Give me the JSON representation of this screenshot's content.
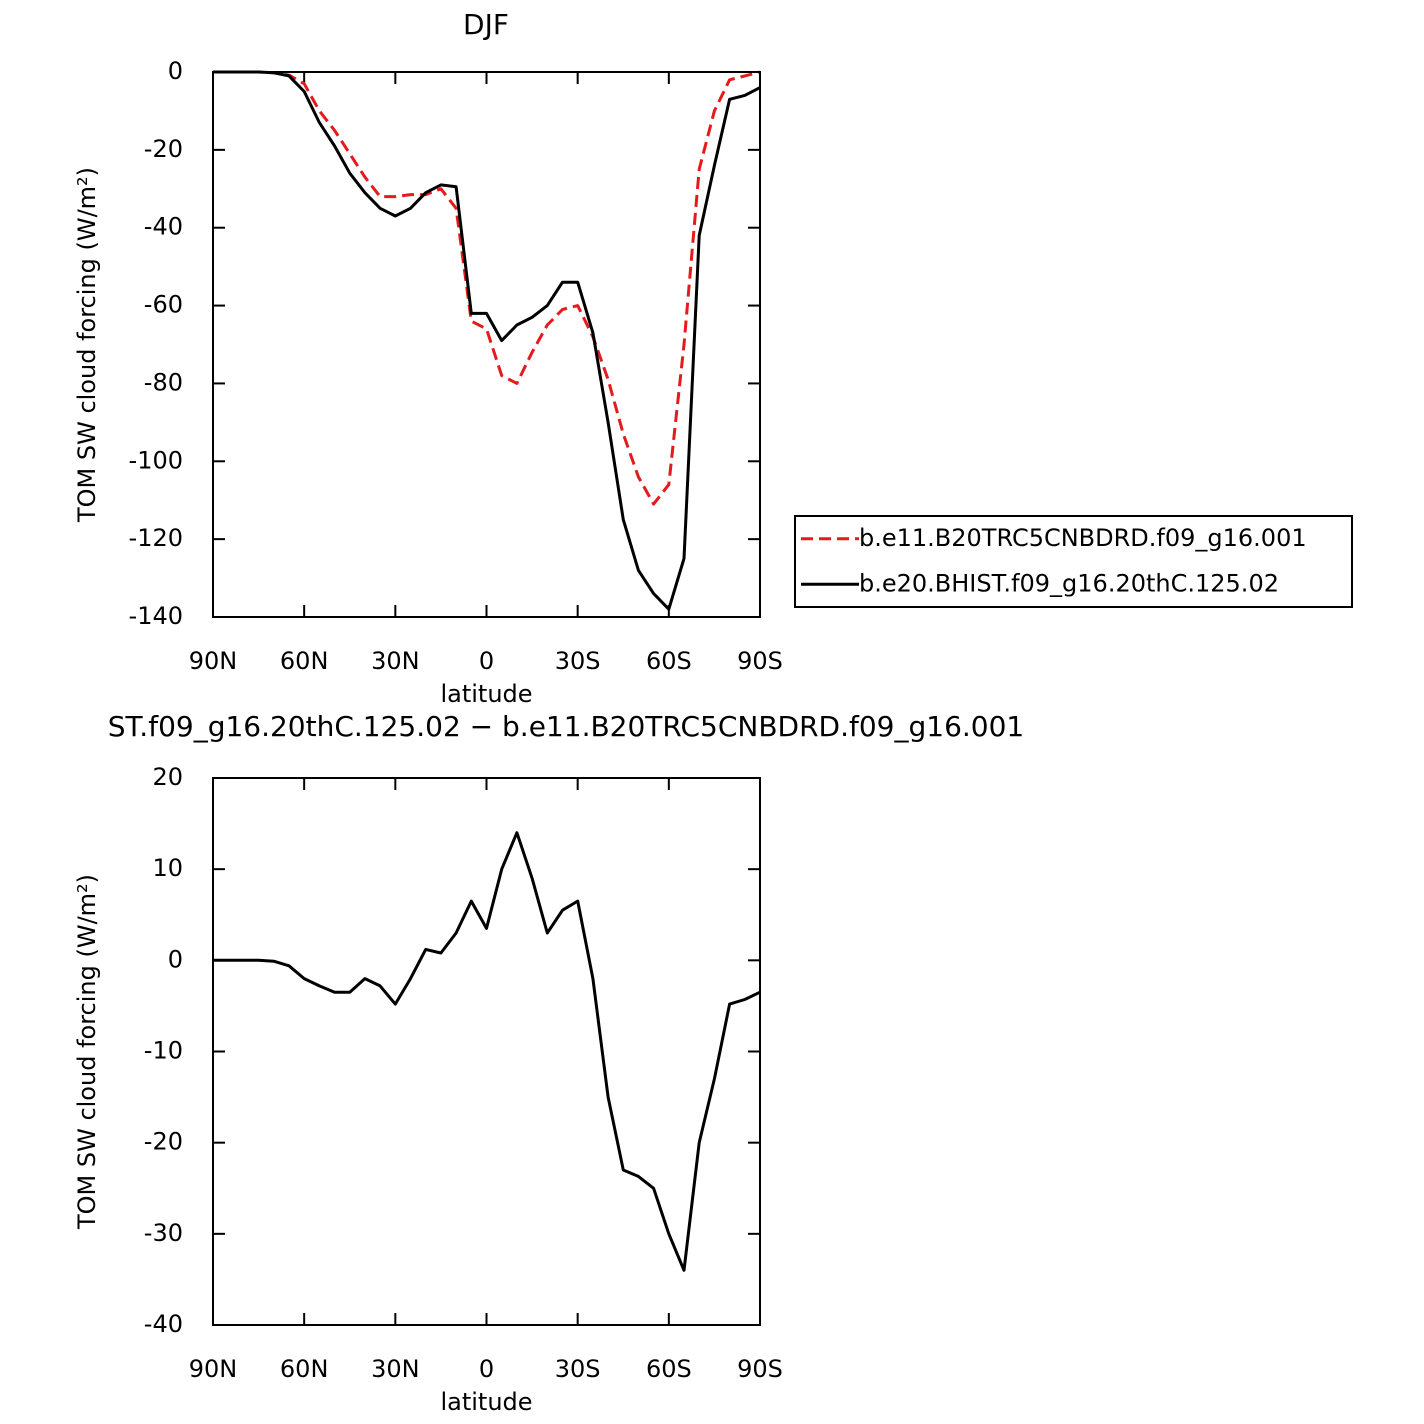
{
  "chart_data": [
    {
      "type": "line",
      "title": "DJF",
      "xlabel": "latitude",
      "ylabel": "TOM SW cloud forcing (W/m²)",
      "x": [
        90,
        85,
        80,
        75,
        70,
        65,
        60,
        55,
        50,
        45,
        40,
        35,
        30,
        25,
        20,
        15,
        10,
        5,
        0,
        -5,
        -10,
        -15,
        -20,
        -25,
        -30,
        -35,
        -40,
        -45,
        -50,
        -55,
        -60,
        -65,
        -70,
        -75,
        -80,
        -85,
        -90
      ],
      "xlim": [
        90,
        -90
      ],
      "xticks": [
        {
          "value": 90,
          "label": "90N"
        },
        {
          "value": 60,
          "label": "60N"
        },
        {
          "value": 30,
          "label": "30N"
        },
        0,
        {
          "value": -30,
          "label": "30S"
        },
        {
          "value": -60,
          "label": "60S"
        },
        {
          "value": -90,
          "label": "90S"
        }
      ],
      "ylim": [
        -140,
        0
      ],
      "yticks": [
        0,
        -20,
        -40,
        -60,
        -80,
        -100,
        -120,
        -140
      ],
      "legend": "right",
      "series": [
        {
          "name": "b.e11.B20TRC5CNBDRD.f09_g16.001",
          "color": "#e41a1c",
          "dash": true,
          "values": [
            0,
            0,
            0,
            0,
            -0.2,
            -0.8,
            -3,
            -10,
            -15,
            -21,
            -27,
            -32,
            -32,
            -31.5,
            -31.5,
            -30,
            -35,
            -64,
            -66,
            -78,
            -80,
            -72,
            -65,
            -61,
            -60,
            -68,
            -79,
            -93,
            -104,
            -111,
            -106,
            -70,
            -25,
            -10,
            -2,
            -1,
            0
          ]
        },
        {
          "name": "b.e20.BHIST.f09_g16.20thC.125.02",
          "color": "#000000",
          "dash": false,
          "values": [
            0,
            0,
            0,
            0,
            -0.2,
            -1,
            -5,
            -13,
            -19,
            -26,
            -31,
            -35,
            -37,
            -35,
            -31,
            -29,
            -29.5,
            -62,
            -62,
            -69,
            -65,
            -63,
            -60,
            -54,
            -54,
            -67,
            -90,
            -115,
            -128,
            -134,
            -138,
            -125,
            -42,
            -24,
            -7,
            -6,
            -4
          ]
        }
      ]
    },
    {
      "type": "line",
      "title": "ST.f09_g16.20thC.125.02 − b.e11.B20TRC5CNBDRD.f09_g16.001",
      "xlabel": "latitude",
      "ylabel": "TOM SW cloud forcing (W/m²)",
      "x": [
        90,
        85,
        80,
        75,
        70,
        65,
        60,
        55,
        50,
        45,
        40,
        35,
        30,
        25,
        20,
        15,
        10,
        5,
        0,
        -5,
        -10,
        -15,
        -20,
        -25,
        -30,
        -35,
        -40,
        -45,
        -50,
        -55,
        -60,
        -65,
        -70,
        -75,
        -80,
        -85,
        -90
      ],
      "xlim": [
        90,
        -90
      ],
      "xticks": [
        {
          "value": 90,
          "label": "90N"
        },
        {
          "value": 60,
          "label": "60N"
        },
        {
          "value": 30,
          "label": "30N"
        },
        0,
        {
          "value": -30,
          "label": "30S"
        },
        {
          "value": -60,
          "label": "60S"
        },
        {
          "value": -90,
          "label": "90S"
        }
      ],
      "ylim": [
        -40,
        20
      ],
      "yticks": [
        20,
        10,
        0,
        -10,
        -20,
        -30,
        -40
      ],
      "series": [
        {
          "color": "#000000",
          "dash": false,
          "values": [
            0,
            0,
            0,
            0,
            -0.1,
            -0.6,
            -2,
            -2.8,
            -3.5,
            -3.5,
            -2,
            -2.8,
            -4.8,
            -2,
            1.2,
            0.8,
            3,
            6.5,
            3.5,
            10,
            14,
            9,
            3,
            5.5,
            6.5,
            -2,
            -15,
            -23,
            -23.7,
            -25,
            -30,
            -34,
            -20,
            -13,
            -4.8,
            -4.3,
            -3.5
          ]
        }
      ]
    }
  ]
}
